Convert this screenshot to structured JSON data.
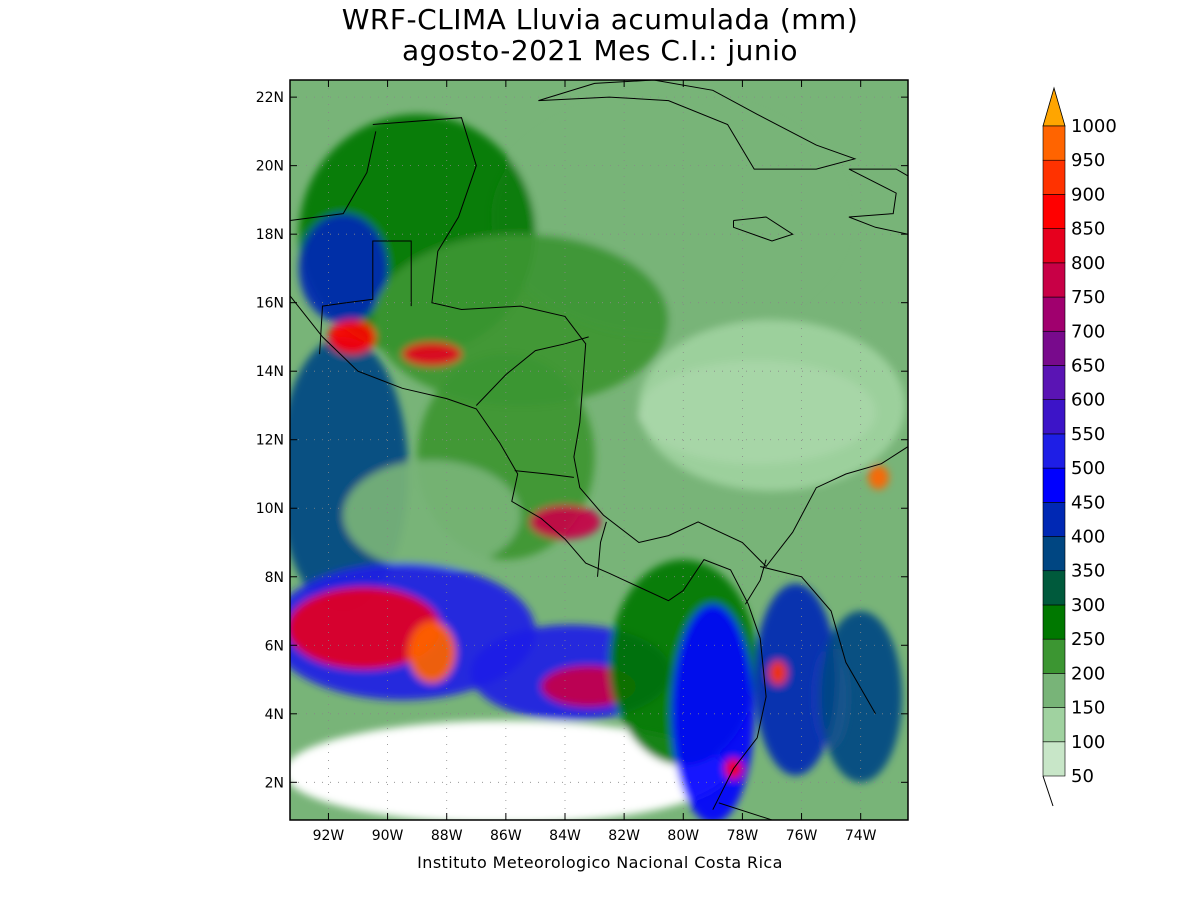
{
  "title": {
    "line1": "WRF-CLIMA Lluvia acumulada (mm)",
    "line2": "agosto-2021 Mes C.I.: junio"
  },
  "credit": "Instituto Meteorologico Nacional Costa Rica",
  "map": {
    "lon_range": [
      -93.3,
      -72.4
    ],
    "lat_range": [
      0.9,
      22.5
    ],
    "lon_ticks": [
      {
        "value": -92,
        "label": "92W"
      },
      {
        "value": -90,
        "label": "90W"
      },
      {
        "value": -88,
        "label": "88W"
      },
      {
        "value": -86,
        "label": "86W"
      },
      {
        "value": -84,
        "label": "84W"
      },
      {
        "value": -82,
        "label": "82W"
      },
      {
        "value": -80,
        "label": "80W"
      },
      {
        "value": -78,
        "label": "78W"
      },
      {
        "value": -76,
        "label": "76W"
      },
      {
        "value": -74,
        "label": "74W"
      }
    ],
    "lat_ticks": [
      {
        "value": 2,
        "label": "2N"
      },
      {
        "value": 4,
        "label": "4N"
      },
      {
        "value": 6,
        "label": "6N"
      },
      {
        "value": 8,
        "label": "8N"
      },
      {
        "value": 10,
        "label": "10N"
      },
      {
        "value": 12,
        "label": "12N"
      },
      {
        "value": 14,
        "label": "14N"
      },
      {
        "value": 16,
        "label": "16N"
      },
      {
        "value": 18,
        "label": "18N"
      },
      {
        "value": 20,
        "label": "20N"
      },
      {
        "value": 22,
        "label": "22N"
      }
    ],
    "grid": "dotted"
  },
  "colorbar": {
    "arrow_color": "#ffa500",
    "levels": [
      {
        "label": "50",
        "color": "#c8e6c8"
      },
      {
        "label": "100",
        "color": "#a0d2a0"
      },
      {
        "label": "150",
        "color": "#78b478"
      },
      {
        "label": "200",
        "color": "#3c9632"
      },
      {
        "label": "250",
        "color": "#007800"
      },
      {
        "label": "300",
        "color": "#005a3c"
      },
      {
        "label": "350",
        "color": "#004682"
      },
      {
        "label": "400",
        "color": "#0028b4"
      },
      {
        "label": "450",
        "color": "#0000ff"
      },
      {
        "label": "500",
        "color": "#1e1ee6"
      },
      {
        "label": "550",
        "color": "#3c14c8"
      },
      {
        "label": "600",
        "color": "#5a14b4"
      },
      {
        "label": "650",
        "color": "#780a8c"
      },
      {
        "label": "700",
        "color": "#a0006e"
      },
      {
        "label": "750",
        "color": "#c80046"
      },
      {
        "label": "800",
        "color": "#e6001e"
      },
      {
        "label": "850",
        "color": "#ff0000"
      },
      {
        "label": "900",
        "color": "#ff3200"
      },
      {
        "label": "950",
        "color": "#ff6400"
      },
      {
        "label": "1000",
        "color": "#ff9600"
      }
    ]
  },
  "rain_fields": [
    {
      "lon": -80.5,
      "lat": 18.5,
      "level": 2,
      "rx": 6.0,
      "ry": 3.5
    },
    {
      "lon": -77.0,
      "lat": 13.0,
      "level": 1,
      "rx": 4.5,
      "ry": 2.5
    },
    {
      "lon": -89.0,
      "lat": 18.0,
      "level": 4,
      "rx": 4.0,
      "ry": 3.5
    },
    {
      "lon": -91.5,
      "lat": 17.0,
      "level": 7,
      "rx": 1.5,
      "ry": 1.6
    },
    {
      "lon": -85.5,
      "lat": 15.5,
      "level": 3,
      "rx": 5.0,
      "ry": 2.5
    },
    {
      "lon": -86.0,
      "lat": 11.5,
      "level": 3,
      "rx": 3.0,
      "ry": 3.0
    },
    {
      "lon": -91.5,
      "lat": 11.0,
      "level": 6,
      "rx": 2.2,
      "ry": 4.0
    },
    {
      "lon": -88.5,
      "lat": 9.8,
      "level": 2,
      "rx": 3.0,
      "ry": 1.6
    },
    {
      "lon": -89.5,
      "lat": 6.4,
      "level": 9,
      "rx": 4.5,
      "ry": 2.0
    },
    {
      "lon": -90.8,
      "lat": 6.5,
      "level": 15,
      "rx": 2.6,
      "ry": 1.2
    },
    {
      "lon": -88.5,
      "lat": 5.8,
      "level": 18,
      "rx": 0.8,
      "ry": 0.9
    },
    {
      "lon": -83.8,
      "lat": 5.2,
      "level": 9,
      "rx": 3.4,
      "ry": 1.4
    },
    {
      "lon": -83.2,
      "lat": 4.8,
      "level": 14,
      "rx": 1.6,
      "ry": 0.6
    },
    {
      "lon": -80.0,
      "lat": 5.5,
      "level": 4,
      "rx": 2.5,
      "ry": 3.0
    },
    {
      "lon": -79.0,
      "lat": 4.0,
      "level": 8,
      "rx": 1.4,
      "ry": 3.2
    },
    {
      "lon": -76.2,
      "lat": 5.0,
      "level": 7,
      "rx": 1.4,
      "ry": 2.8
    },
    {
      "lon": -74.0,
      "lat": 4.5,
      "level": 6,
      "rx": 1.4,
      "ry": 2.5
    },
    {
      "lon": -84.0,
      "lat": 9.6,
      "level": 14,
      "rx": 1.2,
      "ry": 0.5
    },
    {
      "lon": -88.5,
      "lat": 14.5,
      "level": 15,
      "rx": 1.0,
      "ry": 0.35
    },
    {
      "lon": -91.2,
      "lat": 15.0,
      "level": 16,
      "rx": 0.8,
      "ry": 0.5
    },
    {
      "lon": -73.4,
      "lat": 10.9,
      "level": 18,
      "rx": 0.35,
      "ry": 0.35
    },
    {
      "lon": -76.8,
      "lat": 5.2,
      "level": 17,
      "rx": 0.3,
      "ry": 0.35
    },
    {
      "lon": -78.3,
      "lat": 2.4,
      "level": 16,
      "rx": 0.3,
      "ry": 0.3
    }
  ],
  "dry_areas": [
    {
      "lon": -77.5,
      "lat": 12.8,
      "rx": 4.0,
      "ry": 1.5
    },
    {
      "lon": -86.0,
      "lat": 2.3,
      "rx": 7.5,
      "ry": 1.5
    },
    {
      "lon": -75.0,
      "lat": 4.5,
      "rx": 0.6,
      "ry": 1.5
    }
  ],
  "coastlines": [
    {
      "name": "central-america-pacific",
      "points": [
        [
          -93.3,
          16.2
        ],
        [
          -92.2,
          15.0
        ],
        [
          -91.0,
          14.0
        ],
        [
          -89.5,
          13.5
        ],
        [
          -88.0,
          13.2
        ],
        [
          -87.0,
          12.9
        ],
        [
          -86.2,
          11.9
        ],
        [
          -85.6,
          11.0
        ],
        [
          -85.8,
          10.2
        ],
        [
          -84.8,
          9.7
        ],
        [
          -84.0,
          9.1
        ],
        [
          -83.3,
          8.4
        ],
        [
          -82.5,
          8.1
        ],
        [
          -81.5,
          7.7
        ],
        [
          -80.5,
          7.3
        ],
        [
          -80.0,
          7.6
        ],
        [
          -79.3,
          8.5
        ],
        [
          -78.4,
          8.2
        ],
        [
          -77.8,
          7.2
        ],
        [
          -77.4,
          6.2
        ],
        [
          -77.2,
          4.5
        ],
        [
          -77.5,
          3.3
        ],
        [
          -78.3,
          2.4
        ],
        [
          -79.0,
          1.2
        ]
      ]
    },
    {
      "name": "central-america-caribbean",
      "points": [
        [
          -90.5,
          21.2
        ],
        [
          -87.5,
          21.4
        ],
        [
          -87.0,
          20.0
        ],
        [
          -87.6,
          18.5
        ],
        [
          -88.3,
          17.5
        ],
        [
          -88.5,
          16.0
        ],
        [
          -87.5,
          15.8
        ],
        [
          -85.5,
          15.9
        ],
        [
          -84.0,
          15.6
        ],
        [
          -83.3,
          14.8
        ],
        [
          -83.5,
          12.5
        ],
        [
          -83.7,
          11.5
        ],
        [
          -83.5,
          10.6
        ],
        [
          -82.7,
          9.8
        ],
        [
          -81.5,
          9.0
        ],
        [
          -80.5,
          9.2
        ],
        [
          -79.5,
          9.6
        ],
        [
          -78.0,
          9.0
        ],
        [
          -77.2,
          8.3
        ],
        [
          -76.3,
          9.3
        ],
        [
          -75.5,
          10.6
        ],
        [
          -74.5,
          11.0
        ],
        [
          -73.3,
          11.3
        ],
        [
          -72.4,
          11.8
        ]
      ]
    },
    {
      "name": "gulf-coast",
      "points": [
        [
          -93.3,
          18.4
        ],
        [
          -91.5,
          18.6
        ],
        [
          -90.7,
          19.8
        ],
        [
          -90.4,
          21.0
        ]
      ]
    },
    {
      "name": "cuba",
      "points": [
        [
          -84.9,
          21.9
        ],
        [
          -83.0,
          22.4
        ],
        [
          -81.0,
          22.5
        ],
        [
          -79.0,
          22.2
        ],
        [
          -77.5,
          21.5
        ],
        [
          -75.5,
          20.6
        ],
        [
          -74.2,
          20.2
        ],
        [
          -75.5,
          19.9
        ],
        [
          -77.6,
          19.9
        ],
        [
          -78.5,
          21.2
        ],
        [
          -80.5,
          21.9
        ],
        [
          -82.5,
          22.0
        ],
        [
          -84.9,
          21.9
        ]
      ]
    },
    {
      "name": "jamaica",
      "points": [
        [
          -78.3,
          18.4
        ],
        [
          -77.2,
          18.5
        ],
        [
          -76.3,
          18.0
        ],
        [
          -77.0,
          17.8
        ],
        [
          -78.3,
          18.2
        ],
        [
          -78.3,
          18.4
        ]
      ]
    },
    {
      "name": "hispaniola",
      "points": [
        [
          -74.4,
          19.9
        ],
        [
          -72.8,
          19.9
        ],
        [
          -72.4,
          19.7
        ],
        [
          -72.4,
          18.0
        ],
        [
          -73.5,
          18.2
        ],
        [
          -74.4,
          18.5
        ],
        [
          -72.9,
          18.6
        ],
        [
          -72.8,
          19.2
        ],
        [
          -74.4,
          19.9
        ]
      ]
    },
    {
      "name": "colombia-interior",
      "points": [
        [
          -77.4,
          8.3
        ],
        [
          -76.0,
          8.0
        ],
        [
          -75.0,
          7.0
        ],
        [
          -74.5,
          5.5
        ],
        [
          -73.5,
          4.0
        ]
      ]
    }
  ],
  "borders": [
    {
      "name": "mexico-guatemala-belize",
      "points": [
        [
          -92.3,
          14.5
        ],
        [
          -92.2,
          15.9
        ],
        [
          -91.4,
          16.0
        ],
        [
          -90.5,
          16.1
        ],
        [
          -90.5,
          17.8
        ],
        [
          -89.2,
          17.8
        ],
        [
          -89.2,
          15.9
        ]
      ]
    },
    {
      "name": "honduras-nicaragua",
      "points": [
        [
          -87.0,
          13.0
        ],
        [
          -86.0,
          13.9
        ],
        [
          -85.0,
          14.6
        ],
        [
          -84.0,
          14.8
        ],
        [
          -83.2,
          15.0
        ]
      ]
    },
    {
      "name": "nicaragua-costa-rica",
      "points": [
        [
          -85.7,
          11.1
        ],
        [
          -84.6,
          11.0
        ],
        [
          -83.7,
          10.9
        ]
      ]
    },
    {
      "name": "costa-rica-panama",
      "points": [
        [
          -82.9,
          8.0
        ],
        [
          -82.8,
          9.0
        ],
        [
          -82.6,
          9.6
        ]
      ]
    },
    {
      "name": "panama-colombia",
      "points": [
        [
          -77.9,
          7.2
        ],
        [
          -77.4,
          7.9
        ],
        [
          -77.2,
          8.5
        ]
      ]
    },
    {
      "name": "colombia-ecuador",
      "points": [
        [
          -78.8,
          1.4
        ],
        [
          -77.0,
          0.9
        ]
      ]
    }
  ]
}
